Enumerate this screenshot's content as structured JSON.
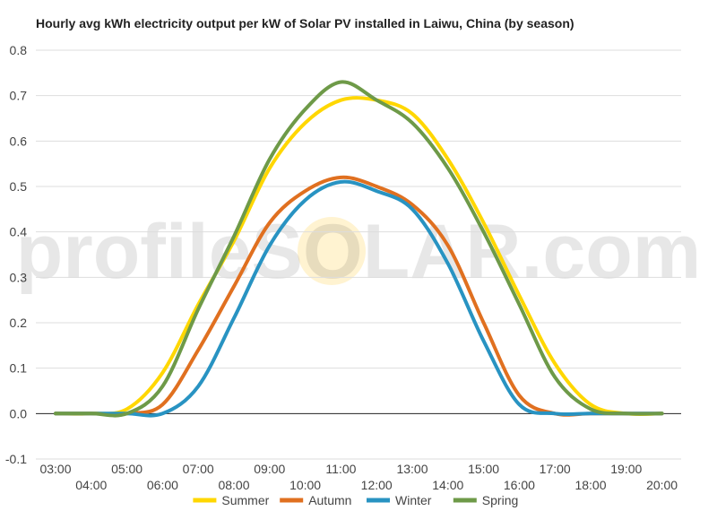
{
  "chart_data": {
    "type": "line",
    "title": "Hourly avg kWh electricity output per kW of Solar PV installed in Laiwu, China (by season)",
    "xlabel": "",
    "ylabel": "",
    "x_ticks": [
      "03:00",
      "04:00",
      "05:00",
      "06:00",
      "07:00",
      "08:00",
      "09:00",
      "10:00",
      "11:00",
      "12:00",
      "13:00",
      "14:00",
      "15:00",
      "16:00",
      "17:00",
      "18:00",
      "19:00",
      "20:00"
    ],
    "x_hours": [
      3,
      4,
      5,
      6,
      7,
      8,
      9,
      10,
      11,
      12,
      13,
      14,
      15,
      16,
      17,
      18,
      19,
      20
    ],
    "y_ticks": [
      "0.8",
      "0.7",
      "0.6",
      "0.5",
      "0.4",
      "0.3",
      "0.2",
      "0.1",
      "0.0",
      "-0.1"
    ],
    "ylim": [
      -0.1,
      0.8
    ],
    "grid": true,
    "legend_position": "bottom",
    "watermark": "profileSOLAR.com",
    "series": [
      {
        "name": "Summer",
        "color": "#FFD700",
        "values": [
          0.0,
          0.0,
          0.01,
          0.09,
          0.24,
          0.38,
          0.54,
          0.64,
          0.69,
          0.69,
          0.66,
          0.56,
          0.42,
          0.26,
          0.11,
          0.02,
          0.0,
          0.0
        ]
      },
      {
        "name": "Autumn",
        "color": "#E07020",
        "values": [
          0.0,
          0.0,
          0.0,
          0.02,
          0.14,
          0.28,
          0.42,
          0.49,
          0.52,
          0.5,
          0.46,
          0.37,
          0.2,
          0.04,
          0.0,
          0.0,
          0.0,
          0.0
        ]
      },
      {
        "name": "Winter",
        "color": "#2893C2",
        "values": [
          0.0,
          0.0,
          0.0,
          0.0,
          0.06,
          0.21,
          0.37,
          0.47,
          0.51,
          0.49,
          0.45,
          0.33,
          0.16,
          0.02,
          0.0,
          0.0,
          0.0,
          0.0
        ]
      },
      {
        "name": "Spring",
        "color": "#6E9A48",
        "values": [
          0.0,
          0.0,
          0.0,
          0.06,
          0.23,
          0.39,
          0.56,
          0.67,
          0.73,
          0.69,
          0.64,
          0.54,
          0.4,
          0.24,
          0.08,
          0.01,
          0.0,
          0.0
        ]
      }
    ]
  }
}
